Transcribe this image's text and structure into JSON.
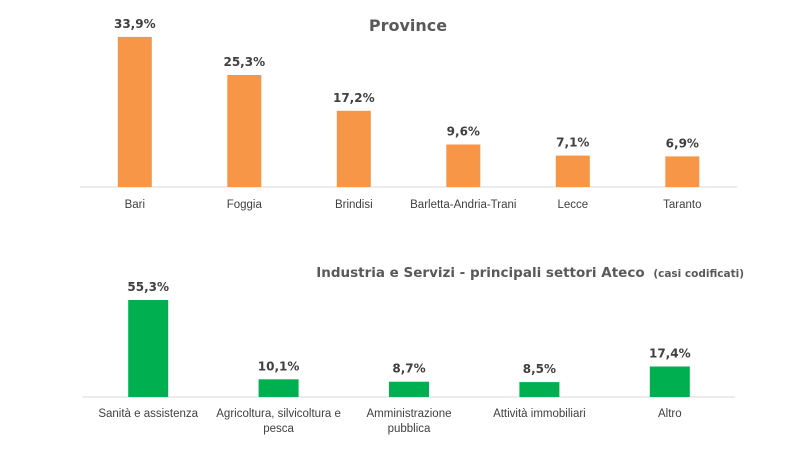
{
  "chart_data": [
    {
      "type": "bar",
      "title": "Province",
      "categories": [
        "Bari",
        "Foggia",
        "Brindisi",
        "Barletta-Andria-Trani",
        "Lecce",
        "Taranto"
      ],
      "values": [
        33.9,
        25.3,
        17.2,
        9.6,
        7.1,
        6.9
      ],
      "data_labels": [
        "33,9%",
        "25,3%",
        "17,2%",
        "9,6%",
        "7,1%",
        "6,9%"
      ],
      "ylim": [
        0,
        35
      ],
      "color": "#F79646",
      "grid": false,
      "legend": "none"
    },
    {
      "type": "bar",
      "title": "Industria e Servizi - principali settori Ateco",
      "title_note": "(casi codificati)",
      "categories": [
        "Sanità e assistenza",
        "Agricoltura, silvicoltura e pesca",
        "Amministrazione pubblica",
        "Attività immobiliari",
        "Altro"
      ],
      "category_lines": [
        [
          "Sanità e assistenza"
        ],
        [
          "Agricoltura, silvicoltura e",
          "pesca"
        ],
        [
          "Amministrazione",
          "pubblica"
        ],
        [
          "Attività immobiliari"
        ],
        [
          "Altro"
        ]
      ],
      "values": [
        55.3,
        10.1,
        8.7,
        8.5,
        17.4
      ],
      "data_labels": [
        "55,3%",
        "10,1%",
        "8,7%",
        "8,5%",
        "17,4%"
      ],
      "ylim": [
        0,
        57
      ],
      "color": "#00B050",
      "grid": false,
      "legend": "none"
    }
  ]
}
